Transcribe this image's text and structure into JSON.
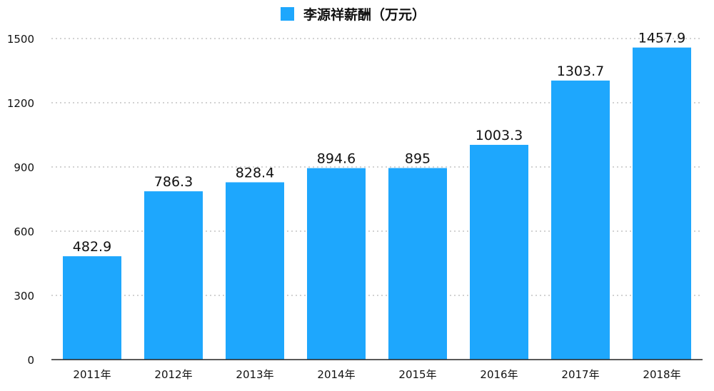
{
  "chart_data": {
    "type": "bar",
    "categories": [
      "2011年",
      "2012年",
      "2013年",
      "2014年",
      "2015年",
      "2016年",
      "2017年",
      "2018年"
    ],
    "series": [
      {
        "name": "李源祥薪酬（万元）",
        "values": [
          482.9,
          786.3,
          828.4,
          894.6,
          895,
          1003.3,
          1303.7,
          1457.9
        ],
        "labels": [
          "482.9",
          "786.3",
          "828.4",
          "894.6",
          "895",
          "1003.3",
          "1303.7",
          "1457.9"
        ]
      }
    ],
    "ylim": [
      0,
      1500
    ],
    "yticks": [
      "0",
      "300",
      "600",
      "900",
      "1200",
      "1500"
    ],
    "ytick_values": [
      0,
      300,
      600,
      900,
      1200,
      1500
    ],
    "grid": true,
    "legend_position": "top-center",
    "colors": {
      "bar": "#1ea7fd",
      "grid": "#b8b8b8",
      "axis": "#222222"
    }
  }
}
